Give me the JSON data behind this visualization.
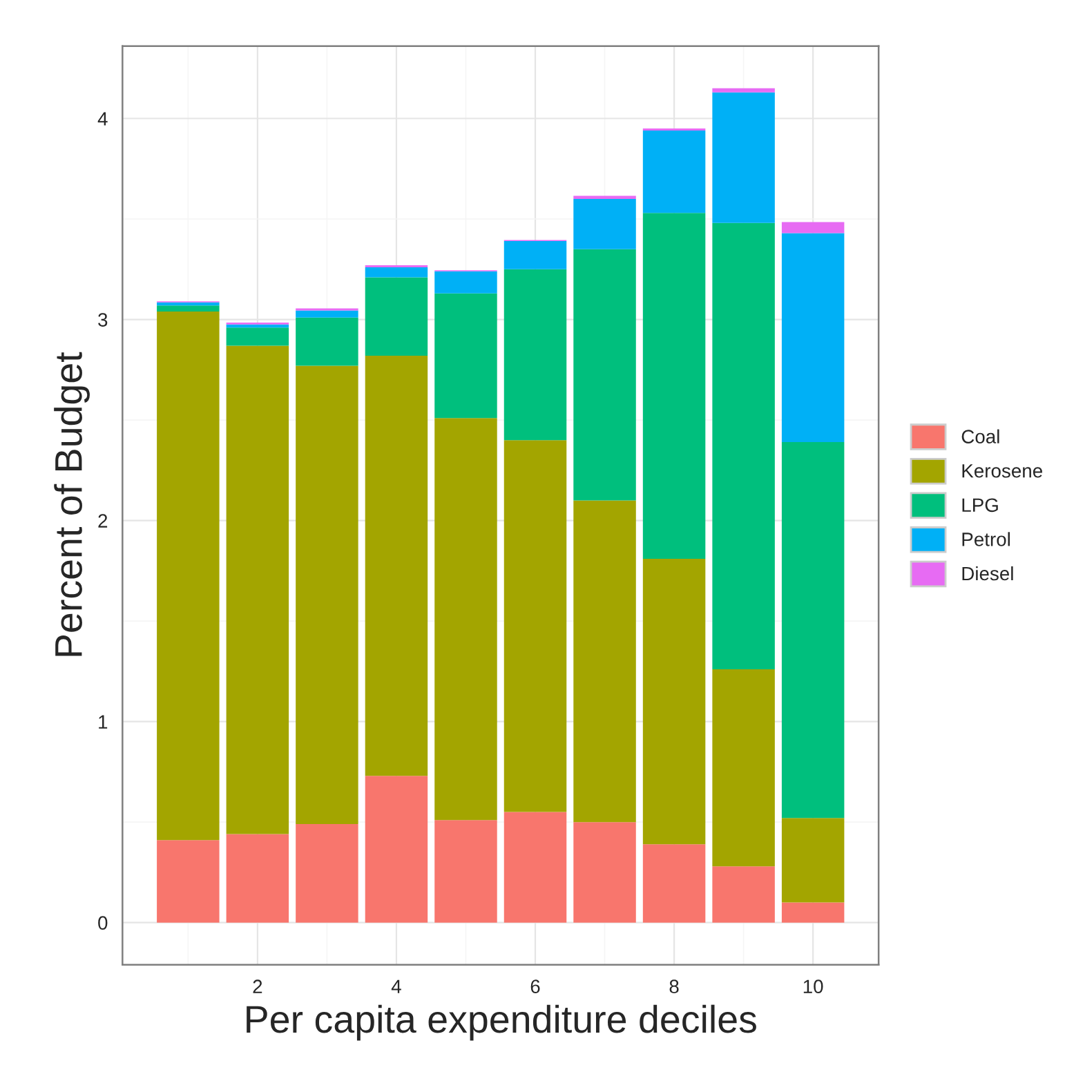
{
  "chart_data": {
    "type": "bar",
    "stacked": true,
    "xlabel": "Per capita expenditure deciles",
    "ylabel": "Percent of Budget",
    "x": [
      1,
      2,
      3,
      4,
      5,
      6,
      7,
      8,
      9,
      10
    ],
    "series": [
      {
        "name": "Coal",
        "color": "#f8766d",
        "values": [
          0.41,
          0.44,
          0.49,
          0.73,
          0.51,
          0.55,
          0.5,
          0.39,
          0.28,
          0.1
        ]
      },
      {
        "name": "Kerosene",
        "color": "#a3a500",
        "values": [
          2.63,
          2.43,
          2.28,
          2.09,
          2.0,
          1.85,
          1.6,
          1.42,
          0.98,
          0.42
        ]
      },
      {
        "name": "LPG",
        "color": "#00bf7d",
        "values": [
          0.03,
          0.09,
          0.24,
          0.39,
          0.62,
          0.85,
          1.25,
          1.72,
          2.22,
          1.87
        ]
      },
      {
        "name": "Petrol",
        "color": "#00b0f6",
        "values": [
          0.015,
          0.015,
          0.035,
          0.05,
          0.11,
          0.14,
          0.25,
          0.41,
          0.65,
          1.04
        ]
      },
      {
        "name": "Diesel",
        "color": "#e76bf3",
        "values": [
          0.005,
          0.01,
          0.01,
          0.01,
          0.005,
          0.005,
          0.015,
          0.01,
          0.02,
          0.055
        ]
      }
    ],
    "xlim": [
      0.055,
      10.945
    ],
    "xticks": [
      2,
      4,
      6,
      8,
      10
    ],
    "ylim": [
      -0.21,
      4.36
    ],
    "yticks": [
      0,
      1,
      2,
      3,
      4
    ],
    "grid": true,
    "legend": "right"
  }
}
